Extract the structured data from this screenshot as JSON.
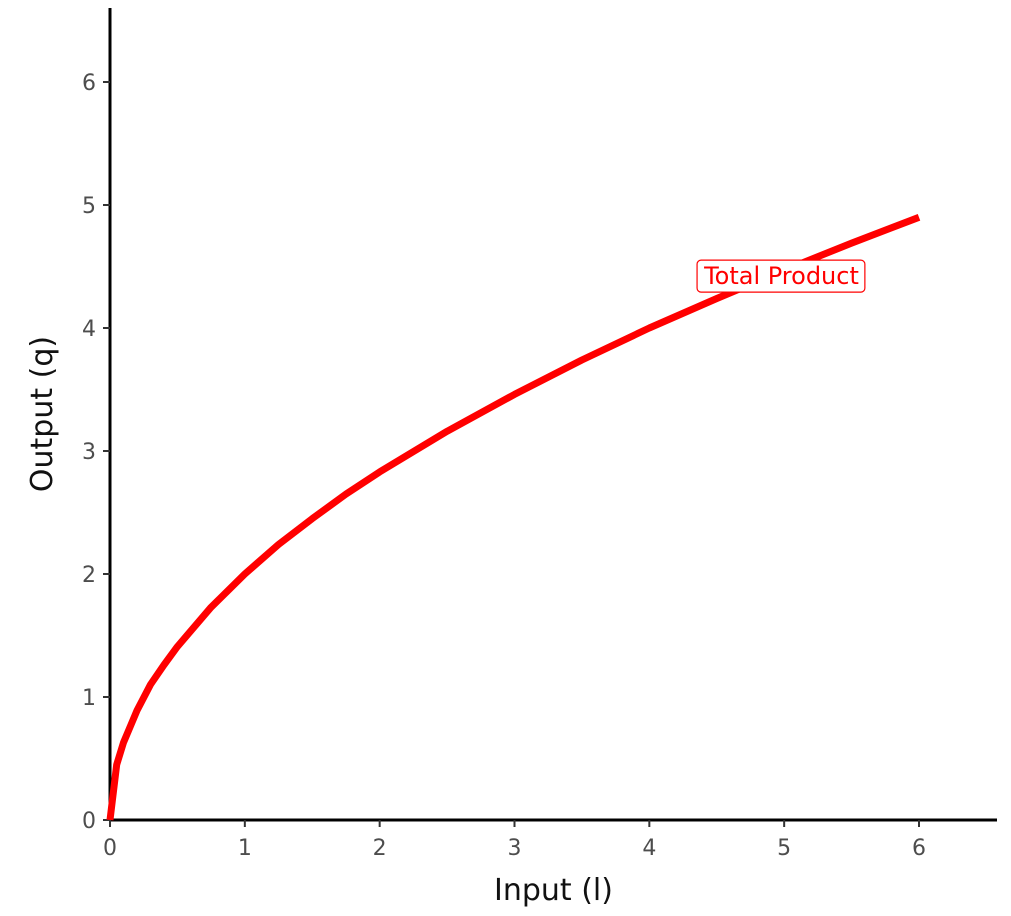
{
  "chart_data": {
    "type": "line",
    "title": "",
    "xlabel": "Input (l)",
    "ylabel": "Output (q)",
    "xlim": [
      0,
      6.6
    ],
    "ylim": [
      0,
      6.6
    ],
    "xticks": [
      0,
      1,
      2,
      3,
      4,
      5,
      6
    ],
    "yticks": [
      0,
      1,
      2,
      3,
      4,
      5,
      6
    ],
    "grid": false,
    "series": [
      {
        "name": "Total Product",
        "color": "#ff0000",
        "x": [
          0,
          0.05,
          0.1,
          0.2,
          0.3,
          0.4,
          0.5,
          0.75,
          1,
          1.25,
          1.5,
          1.75,
          2,
          2.5,
          3,
          3.5,
          4,
          4.5,
          5,
          5.5,
          6
        ],
        "y": [
          0,
          0.45,
          0.63,
          0.89,
          1.1,
          1.26,
          1.41,
          1.73,
          2.0,
          2.24,
          2.45,
          2.65,
          2.83,
          3.16,
          3.46,
          3.74,
          4.0,
          4.24,
          4.47,
          4.69,
          4.9
        ],
        "label": {
          "text": "Total Product",
          "x": 4.98,
          "y": 4.43
        }
      }
    ]
  }
}
